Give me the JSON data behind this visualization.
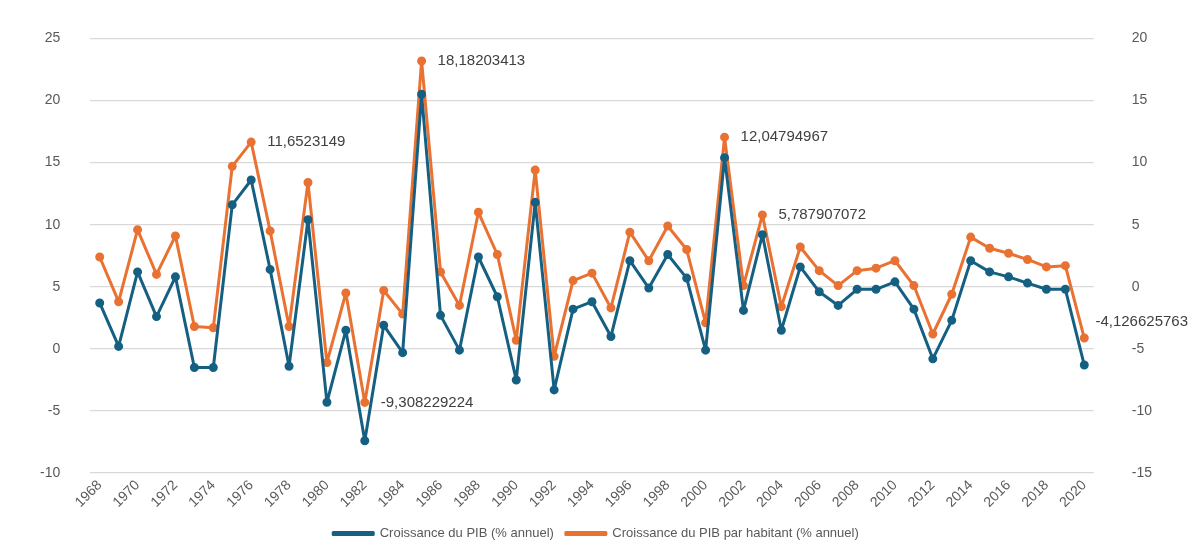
{
  "chart_data": {
    "type": "line",
    "categories": [
      "1968",
      null,
      "1970",
      null,
      "1972",
      null,
      "1974",
      null,
      "1976",
      null,
      "1978",
      null,
      "1980",
      null,
      "1982",
      null,
      "1984",
      null,
      "1986",
      null,
      "1988",
      null,
      "1990",
      null,
      "1992",
      null,
      "1994",
      null,
      "1996",
      null,
      "1998",
      null,
      "2000",
      null,
      "2002",
      null,
      "2004",
      null,
      "2006",
      null,
      "2008",
      null,
      "2010",
      null,
      "2012",
      null,
      "2014",
      null,
      "2016",
      null,
      "2018",
      null,
      "2020"
    ],
    "series": [
      {
        "name": "Croissance du PIB (% annuel)",
        "color": "#156082",
        "values": [
          3.7,
          0.2,
          6.2,
          2.6,
          5.8,
          -1.5,
          -1.5,
          11.6,
          13.6,
          6.4,
          -1.4,
          10.4,
          -4.3,
          1.5,
          -7.4,
          1.9,
          -0.3,
          20.5,
          2.7,
          -0.1,
          7.4,
          4.2,
          -2.5,
          11.8,
          -3.3,
          3.2,
          3.8,
          1.0,
          7.1,
          4.9,
          7.6,
          5.7,
          -0.1,
          15.4,
          3.1,
          9.2,
          1.5,
          6.6,
          4.6,
          3.5,
          4.8,
          4.8,
          5.4,
          3.2,
          -0.8,
          2.3,
          7.1,
          6.2,
          5.8,
          5.3,
          4.8,
          4.8,
          -1.3
        ]
      },
      {
        "name": "Croissance du PIB par habitant (% annuel)",
        "color": "#e97132",
        "axis": "y2",
        "values": [
          2.4,
          -1.2,
          4.6,
          1.0,
          4.1,
          -3.2,
          -3.3,
          9.7,
          11.6523149,
          4.5,
          -3.2,
          8.4,
          -6.1,
          -0.5,
          -9.308229224,
          -0.3,
          -2.2,
          18.18203413,
          1.2,
          -1.5,
          6.0,
          2.6,
          -4.3,
          9.4,
          -5.6,
          0.5,
          1.1,
          -1.7,
          4.4,
          2.1,
          4.9,
          3.0,
          -2.9,
          12.04794967,
          0.1,
          5.787907072,
          -1.6,
          3.2,
          1.3,
          0.1,
          1.3,
          1.5,
          2.1,
          0.1,
          -3.8,
          -0.6,
          4.0,
          3.1,
          2.7,
          2.2,
          1.6,
          1.7,
          -4.126625763
        ],
        "value_labels": [
          null,
          null,
          null,
          null,
          null,
          null,
          null,
          null,
          "11,6523149",
          null,
          null,
          null,
          null,
          null,
          "-9,308229224",
          null,
          null,
          "18,18203413",
          null,
          null,
          null,
          null,
          null,
          null,
          null,
          null,
          null,
          null,
          null,
          null,
          null,
          null,
          null,
          "12,04794967",
          null,
          "5,787907072",
          null,
          null,
          null,
          null,
          null,
          null,
          null,
          null,
          null,
          null,
          null,
          null,
          null,
          null,
          null,
          null,
          "-4,126625763"
        ]
      }
    ],
    "ylim": [
      -10,
      25
    ],
    "yticks": [
      -10,
      -5,
      0,
      5,
      10,
      15,
      20,
      25
    ],
    "y2lim": [
      -15,
      20
    ],
    "y2ticks": [
      -15,
      -10,
      -5,
      0,
      5,
      10,
      15,
      20
    ],
    "grid": "y",
    "legend": "bottom",
    "marker": "circle",
    "line_style": "solid"
  }
}
